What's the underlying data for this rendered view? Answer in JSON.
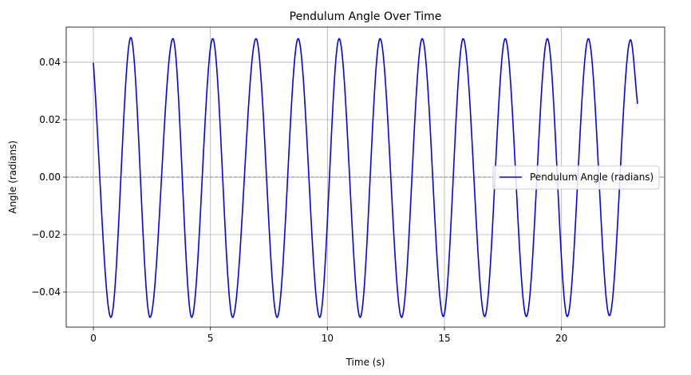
{
  "chart_data": {
    "type": "line",
    "title": "Pendulum Angle Over Time",
    "xlabel": "Time (s)",
    "ylabel": "Angle (radians)",
    "xlim": [
      -1.16,
      24.41
    ],
    "ylim": [
      -0.0522,
      0.0522
    ],
    "xticks": [
      0,
      5,
      10,
      15,
      20
    ],
    "xtick_labels": [
      "0",
      "5",
      "10",
      "15",
      "20"
    ],
    "yticks": [
      -0.04,
      -0.02,
      0.0,
      0.02,
      0.04
    ],
    "ytick_labels": [
      "−0.04",
      "−0.02",
      "0.00",
      "0.02",
      "0.04"
    ],
    "grid": true,
    "reference_line": {
      "y": 0.0,
      "style": "dashed",
      "color": "#808080"
    },
    "legend": {
      "location": "center-right"
    },
    "series": [
      {
        "name": "Pendulum Angle (radians)",
        "color": "#0000ff",
        "x": [
          0.0,
          0.75,
          1.6,
          2.42,
          3.4,
          4.2,
          5.1,
          5.95,
          6.95,
          7.85,
          8.75,
          9.67,
          10.5,
          11.4,
          12.25,
          13.17,
          14.05,
          14.95,
          15.8,
          16.72,
          17.6,
          18.5,
          19.4,
          20.25,
          21.15,
          22.05,
          22.95,
          23.25
        ],
        "y": [
          0.0398,
          -0.0488,
          0.0486,
          -0.0488,
          0.0482,
          -0.0488,
          0.0482,
          -0.0488,
          0.0482,
          -0.0488,
          0.0482,
          -0.0488,
          0.0482,
          -0.0488,
          0.0482,
          -0.0488,
          0.0482,
          -0.0485,
          0.0482,
          -0.0485,
          0.0482,
          -0.0485,
          0.0482,
          -0.0485,
          0.0482,
          -0.0482,
          0.0478,
          0.0255
        ]
      }
    ]
  }
}
